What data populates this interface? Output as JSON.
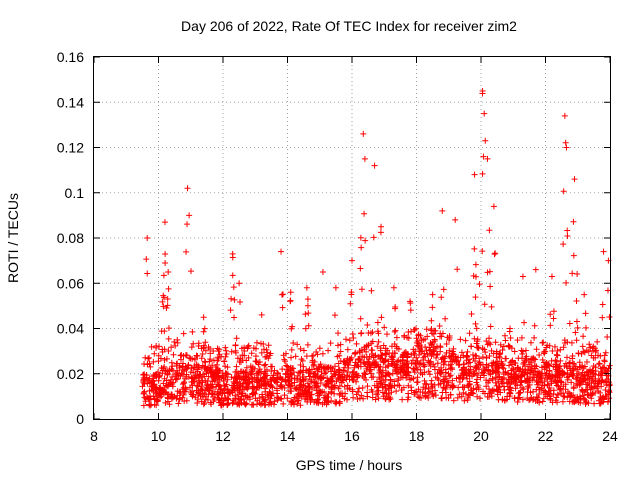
{
  "chart_data": {
    "type": "scatter",
    "title": "Day 206 of 2022, Rate Of TEC Index for receiver zim2",
    "xlabel": "GPS time / hours",
    "ylabel": "ROTI / TECUs",
    "xlim": [
      8,
      24
    ],
    "ylim": [
      0,
      0.16
    ],
    "xticks": [
      "8",
      "10",
      "12",
      "14",
      "16",
      "18",
      "20",
      "22",
      "24"
    ],
    "yticks": [
      "0",
      "0.02",
      "0.04",
      "0.06",
      "0.08",
      "0.1",
      "0.12",
      "0.14",
      "0.16"
    ],
    "grid": true,
    "marker": "+",
    "color": "#ff0000",
    "data_range_x": [
      9.5,
      24
    ],
    "baseline": [
      [
        9.5,
        0.012
      ],
      [
        10,
        0.013
      ],
      [
        10.5,
        0.015
      ],
      [
        11,
        0.016
      ],
      [
        11.5,
        0.014
      ],
      [
        12,
        0.013
      ],
      [
        12.5,
        0.013
      ],
      [
        13,
        0.014
      ],
      [
        13.5,
        0.013
      ],
      [
        14,
        0.014
      ],
      [
        14.5,
        0.013
      ],
      [
        15,
        0.014
      ],
      [
        15.5,
        0.014
      ],
      [
        16,
        0.018
      ],
      [
        16.5,
        0.02
      ],
      [
        17,
        0.018
      ],
      [
        17.5,
        0.017
      ],
      [
        18,
        0.02
      ],
      [
        18.5,
        0.021
      ],
      [
        19,
        0.018
      ],
      [
        19.5,
        0.017
      ],
      [
        20,
        0.02
      ],
      [
        20.5,
        0.018
      ],
      [
        21,
        0.016
      ],
      [
        21.5,
        0.017
      ],
      [
        22,
        0.015
      ],
      [
        22.5,
        0.016
      ],
      [
        23,
        0.015
      ],
      [
        23.5,
        0.014
      ],
      [
        24,
        0.015
      ]
    ],
    "peaks": [
      [
        9.65,
        0.08
      ],
      [
        10.2,
        0.087
      ],
      [
        10.3,
        0.065
      ],
      [
        10.9,
        0.102
      ],
      [
        10.95,
        0.09
      ],
      [
        11.4,
        0.045
      ],
      [
        12.3,
        0.073
      ],
      [
        12.5,
        0.06
      ],
      [
        13.2,
        0.046
      ],
      [
        13.8,
        0.074
      ],
      [
        14.1,
        0.056
      ],
      [
        14.6,
        0.058
      ],
      [
        15.1,
        0.065
      ],
      [
        15.5,
        0.058
      ],
      [
        16.0,
        0.07
      ],
      [
        16.35,
        0.126
      ],
      [
        16.4,
        0.115
      ],
      [
        16.7,
        0.112
      ],
      [
        16.9,
        0.085
      ],
      [
        17.3,
        0.058
      ],
      [
        17.8,
        0.052
      ],
      [
        18.5,
        0.055
      ],
      [
        18.8,
        0.092
      ],
      [
        19.2,
        0.088
      ],
      [
        19.8,
        0.108
      ],
      [
        20.05,
        0.145
      ],
      [
        20.1,
        0.135
      ],
      [
        20.2,
        0.115
      ],
      [
        20.4,
        0.094
      ],
      [
        20.9,
        0.04
      ],
      [
        21.3,
        0.063
      ],
      [
        21.7,
        0.066
      ],
      [
        22.2,
        0.063
      ],
      [
        22.6,
        0.134
      ],
      [
        22.65,
        0.12
      ],
      [
        22.9,
        0.106
      ],
      [
        23.2,
        0.055
      ],
      [
        23.8,
        0.074
      ],
      [
        23.95,
        0.07
      ]
    ],
    "point_count": 2600
  }
}
